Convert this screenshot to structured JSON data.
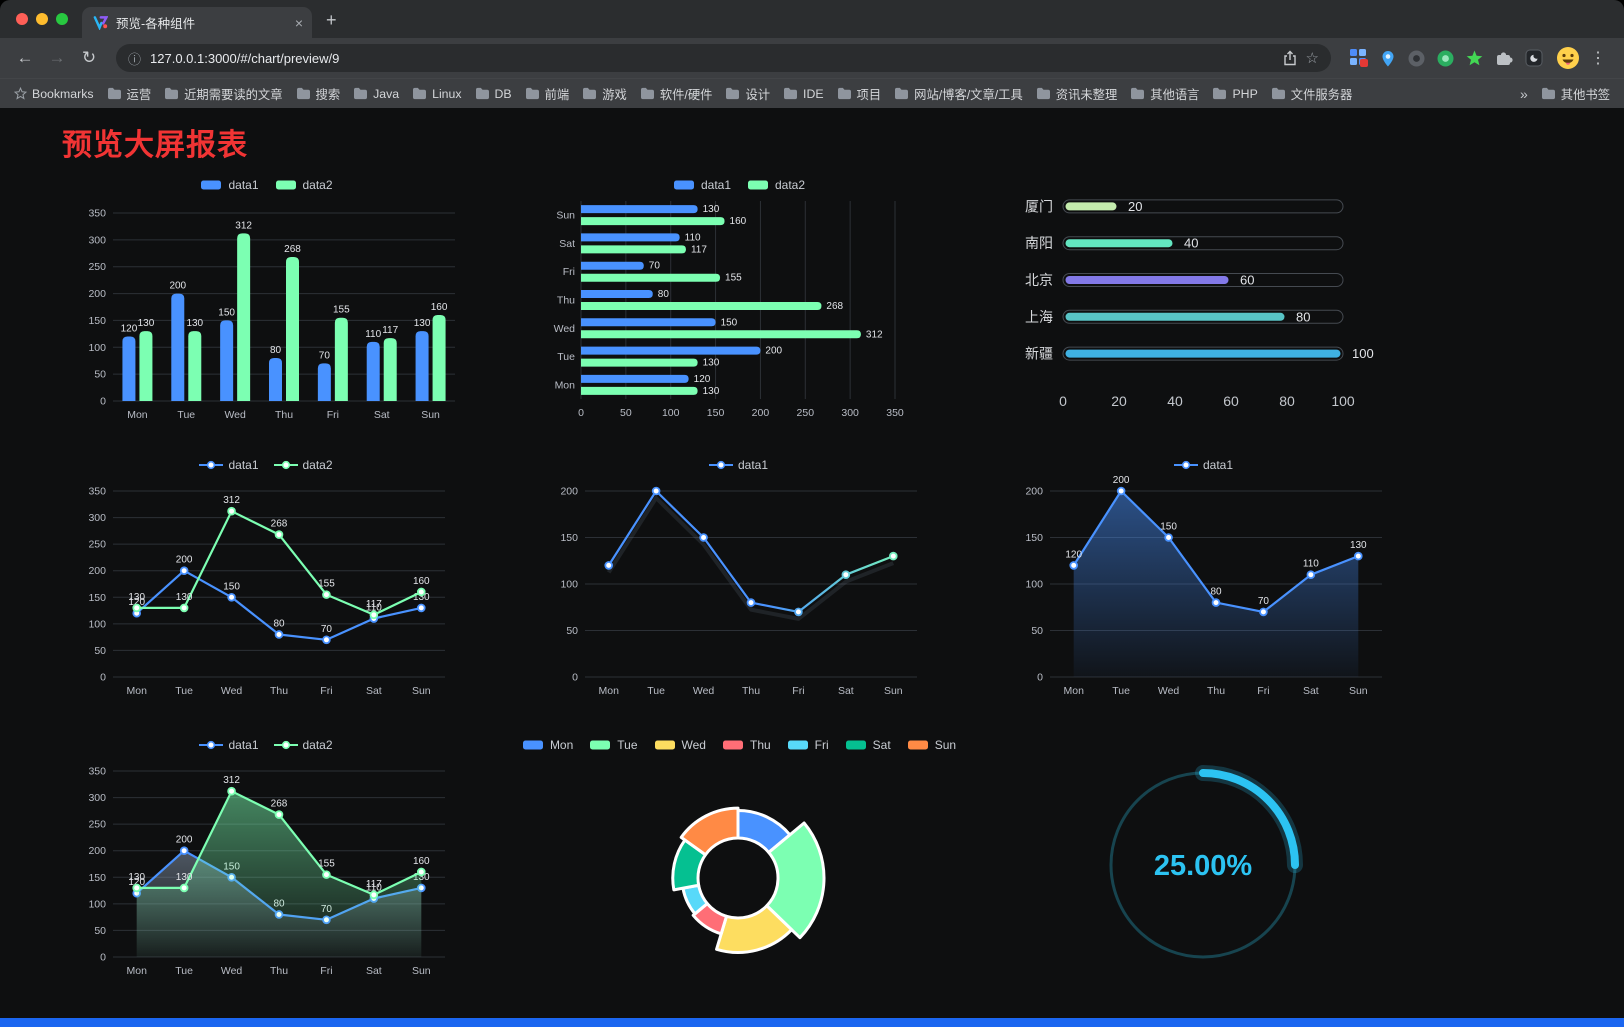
{
  "browser": {
    "tab_title": "预览-各种组件",
    "url": "127.0.0.1:3000/#/chart/preview/9",
    "bookmarks_label": "Bookmarks",
    "bookmarks": [
      "运营",
      "近期需要读的文章",
      "搜索",
      "Java",
      "Linux",
      "DB",
      "前端",
      "游戏",
      "软件/硬件",
      "设计",
      "IDE",
      "项目",
      "网站/博客/文章/工具",
      "资讯未整理",
      "其他语言",
      "PHP",
      "文件服务器"
    ],
    "other_bookmarks": "其他书签"
  },
  "icons": {
    "back": "←",
    "forward": "→",
    "reload": "↻",
    "page_info": "ⓘ",
    "bookmark_star": "☆",
    "menu": "⋮",
    "new_tab": "+",
    "tab_close": "×",
    "overflow_chevron": "»"
  },
  "page": {
    "title": "预览大屏报表",
    "title_color": "#f13434",
    "bottom_bar_color": "#1b66f0"
  },
  "chart_data": [
    {
      "id": "grouped-bar",
      "type": "bar",
      "legend": {
        "type": "rect",
        "items": [
          {
            "label": "data1",
            "color": "#4992ff"
          },
          {
            "label": "data2",
            "color": "#7cffb2"
          }
        ]
      },
      "categories": [
        "Mon",
        "Tue",
        "Wed",
        "Thu",
        "Fri",
        "Sat",
        "Sun"
      ],
      "series": [
        {
          "name": "data1",
          "color": "#4992ff",
          "values": [
            120,
            200,
            150,
            80,
            70,
            110,
            130
          ]
        },
        {
          "name": "data2",
          "color": "#7cffb2",
          "values": [
            130,
            130,
            312,
            268,
            155,
            117,
            160
          ]
        }
      ],
      "ylim": [
        0,
        350
      ],
      "ytick": 50,
      "labels": true
    },
    {
      "id": "horizontal-bar",
      "type": "hbar",
      "legend": {
        "type": "rect",
        "items": [
          {
            "label": "data1",
            "color": "#4992ff"
          },
          {
            "label": "data2",
            "color": "#7cffb2"
          }
        ]
      },
      "categories": [
        "Mon",
        "Tue",
        "Wed",
        "Thu",
        "Fri",
        "Sat",
        "Sun"
      ],
      "series": [
        {
          "name": "data1",
          "color": "#4992ff",
          "values": [
            120,
            200,
            150,
            80,
            70,
            110,
            130
          ]
        },
        {
          "name": "data2",
          "color": "#7cffb2",
          "values": [
            130,
            130,
            312,
            268,
            155,
            117,
            160
          ]
        }
      ],
      "xlim": [
        0,
        350
      ],
      "xtick": 50,
      "labels": true
    },
    {
      "id": "capsule-bar",
      "type": "capsule",
      "rows": [
        {
          "label": "厦门",
          "value": 20,
          "color": "#c4ebad"
        },
        {
          "label": "南阳",
          "value": 40,
          "color": "#63e6c1"
        },
        {
          "label": "北京",
          "value": 60,
          "color": "#8379e8"
        },
        {
          "label": "上海",
          "value": 80,
          "color": "#58c4c6"
        },
        {
          "label": "新疆",
          "value": 100,
          "color": "#3fb1e3"
        }
      ],
      "max": 100,
      "xticks": [
        0,
        20,
        40,
        60,
        80,
        100
      ]
    },
    {
      "id": "multi-line",
      "type": "line",
      "legend": {
        "type": "line",
        "items": [
          {
            "label": "data1",
            "color": "#4992ff"
          },
          {
            "label": "data2",
            "color": "#7cffb2"
          }
        ]
      },
      "categories": [
        "Mon",
        "Tue",
        "Wed",
        "Thu",
        "Fri",
        "Sat",
        "Sun"
      ],
      "series": [
        {
          "name": "data1",
          "color": "#4992ff",
          "values": [
            120,
            200,
            150,
            80,
            70,
            110,
            130
          ]
        },
        {
          "name": "data2",
          "color": "#7cffb2",
          "values": [
            130,
            130,
            312,
            268,
            155,
            117,
            160
          ]
        }
      ],
      "ylim": [
        0,
        350
      ],
      "ytick": 50,
      "labels": true
    },
    {
      "id": "gradient-line",
      "type": "line",
      "legend": {
        "type": "line",
        "items": [
          {
            "label": "data1",
            "color": "#4992ff"
          }
        ]
      },
      "categories": [
        "Mon",
        "Tue",
        "Wed",
        "Thu",
        "Fri",
        "Sat",
        "Sun"
      ],
      "series": [
        {
          "name": "data1",
          "gradient": [
            "#4992ff",
            "#7cffb2"
          ],
          "values": [
            120,
            200,
            150,
            80,
            70,
            110,
            130
          ]
        }
      ],
      "ylim": [
        0,
        200
      ],
      "ytick": 50,
      "labels": false
    },
    {
      "id": "area-line",
      "type": "line",
      "legend": {
        "type": "line",
        "items": [
          {
            "label": "data1",
            "color": "#4992ff"
          }
        ]
      },
      "categories": [
        "Mon",
        "Tue",
        "Wed",
        "Thu",
        "Fri",
        "Sat",
        "Sun"
      ],
      "series": [
        {
          "name": "data1",
          "color": "#4992ff",
          "area": "#4992ff",
          "values": [
            120,
            200,
            150,
            80,
            70,
            110,
            130
          ]
        }
      ],
      "ylim": [
        0,
        200
      ],
      "ytick": 50,
      "labels": true
    },
    {
      "id": "multi-line-area",
      "type": "line",
      "legend": {
        "type": "line",
        "items": [
          {
            "label": "data1",
            "color": "#4992ff"
          },
          {
            "label": "data2",
            "color": "#7cffb2"
          }
        ]
      },
      "categories": [
        "Mon",
        "Tue",
        "Wed",
        "Thu",
        "Fri",
        "Sat",
        "Sun"
      ],
      "series": [
        {
          "name": "data1",
          "color": "#4992ff",
          "area": "#8ea0b5",
          "values": [
            120,
            200,
            150,
            80,
            70,
            110,
            130
          ]
        },
        {
          "name": "data2",
          "color": "#7cffb2",
          "area": "#7cffb2",
          "values": [
            130,
            130,
            312,
            268,
            155,
            117,
            160
          ]
        }
      ],
      "ylim": [
        0,
        350
      ],
      "ytick": 50,
      "labels": true
    },
    {
      "id": "rose-pie",
      "type": "rose",
      "legend": {
        "type": "rect",
        "items": [
          {
            "label": "Mon",
            "color": "#4992ff"
          },
          {
            "label": "Tue",
            "color": "#7cffb2"
          },
          {
            "label": "Wed",
            "color": "#fddd60"
          },
          {
            "label": "Thu",
            "color": "#ff6e76"
          },
          {
            "label": "Fri",
            "color": "#58d9f9"
          },
          {
            "label": "Sat",
            "color": "#05c091"
          },
          {
            "label": "Sun",
            "color": "#ff8a45"
          }
        ]
      },
      "slices": [
        {
          "label": "Mon",
          "value": 120,
          "color": "#4992ff"
        },
        {
          "label": "Tue",
          "value": 200,
          "color": "#7cffb2"
        },
        {
          "label": "Wed",
          "value": 150,
          "color": "#fddd60"
        },
        {
          "label": "Thu",
          "value": 80,
          "color": "#ff6e76"
        },
        {
          "label": "Fri",
          "value": 70,
          "color": "#58d9f9"
        },
        {
          "label": "Sat",
          "value": 110,
          "color": "#05c091"
        },
        {
          "label": "Sun",
          "value": 130,
          "color": "#ff8a45"
        }
      ]
    },
    {
      "id": "gauge",
      "type": "gauge",
      "value": 25,
      "display": "25.00%",
      "color": "#2cc3f2",
      "track_color": "#17444f"
    }
  ]
}
